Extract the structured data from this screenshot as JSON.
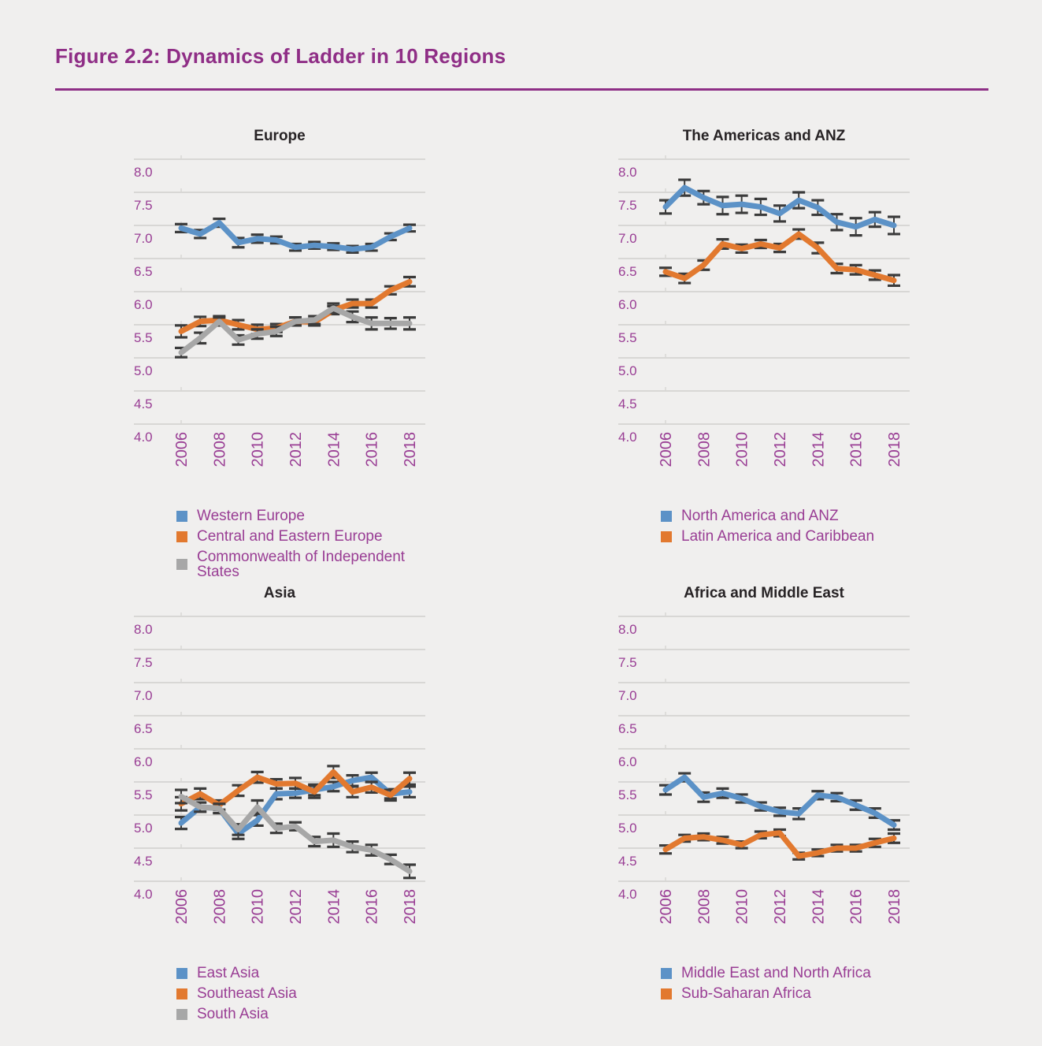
{
  "header": {
    "title": "Figure 2.2: Dynamics of Ladder in 10 Regions"
  },
  "colors": {
    "background": "#f0efee",
    "figure_title": "#8f2e86",
    "rule": "#8e2f86",
    "chart_title": "#272325",
    "axis_text": "#993d94",
    "legend_text": "#993d94",
    "grid": "#d8d7d5",
    "error_bar": "#3b3b3b",
    "blue": "#5c92c7",
    "orange": "#e2792f",
    "gray": "#a7a7a7"
  },
  "chart_data": [
    {
      "type": "line",
      "title": "Europe",
      "ylim": [
        4.0,
        8.0
      ],
      "yticks": [
        "8.0",
        "7.5",
        "7.0",
        "6.5",
        "6.0",
        "5.5",
        "5.0",
        "4.5",
        "4.0"
      ],
      "x": [
        2006,
        2007,
        2008,
        2009,
        2010,
        2011,
        2012,
        2013,
        2014,
        2015,
        2016,
        2017,
        2018
      ],
      "xticks": [
        "2006",
        "2008",
        "2010",
        "2012",
        "2014",
        "2016",
        "2018"
      ],
      "grid": true,
      "legend_position": "below",
      "series": [
        {
          "name": "Western Europe",
          "color_key": "blue",
          "values": [
            6.96,
            6.87,
            7.04,
            6.74,
            6.8,
            6.78,
            6.67,
            6.7,
            6.68,
            6.64,
            6.67,
            6.83,
            6.96
          ],
          "errors": [
            0.06,
            0.06,
            0.06,
            0.07,
            0.06,
            0.05,
            0.05,
            0.05,
            0.05,
            0.05,
            0.05,
            0.05,
            0.05
          ]
        },
        {
          "name": "Central and Eastern Europe",
          "color_key": "orange",
          "values": [
            5.4,
            5.55,
            5.57,
            5.5,
            5.43,
            5.45,
            5.55,
            5.54,
            5.72,
            5.82,
            5.82,
            6.02,
            6.15
          ],
          "errors": [
            0.09,
            0.07,
            0.06,
            0.07,
            0.07,
            0.06,
            0.06,
            0.05,
            0.06,
            0.06,
            0.06,
            0.06,
            0.07
          ]
        },
        {
          "name": "Commonwealth of Independent States",
          "color_key": "gray",
          "values": [
            5.08,
            5.3,
            5.55,
            5.27,
            5.36,
            5.4,
            5.55,
            5.57,
            5.75,
            5.62,
            5.52,
            5.52,
            5.52
          ],
          "errors": [
            0.07,
            0.08,
            0.06,
            0.07,
            0.07,
            0.07,
            0.06,
            0.06,
            0.07,
            0.08,
            0.09,
            0.08,
            0.09
          ]
        }
      ]
    },
    {
      "type": "line",
      "title": "The Americas and ANZ",
      "ylim": [
        4.0,
        8.0
      ],
      "yticks": [
        "8.0",
        "7.5",
        "7.0",
        "6.5",
        "6.0",
        "5.5",
        "5.0",
        "4.5",
        "4.0"
      ],
      "x": [
        2006,
        2007,
        2008,
        2009,
        2010,
        2011,
        2012,
        2013,
        2014,
        2015,
        2016,
        2017,
        2018
      ],
      "xticks": [
        "2006",
        "2008",
        "2010",
        "2012",
        "2014",
        "2016",
        "2018"
      ],
      "grid": true,
      "legend_position": "below",
      "series": [
        {
          "name": "North America and ANZ",
          "color_key": "blue",
          "values": [
            7.28,
            7.57,
            7.42,
            7.3,
            7.32,
            7.28,
            7.18,
            7.38,
            7.27,
            7.05,
            6.98,
            7.09,
            7.0
          ],
          "errors": [
            0.1,
            0.12,
            0.1,
            0.13,
            0.13,
            0.12,
            0.12,
            0.12,
            0.11,
            0.12,
            0.13,
            0.11,
            0.13
          ]
        },
        {
          "name": "Latin America and Caribbean",
          "color_key": "orange",
          "values": [
            6.3,
            6.2,
            6.4,
            6.72,
            6.65,
            6.72,
            6.66,
            6.87,
            6.66,
            6.35,
            6.33,
            6.25,
            6.17
          ],
          "errors": [
            0.06,
            0.07,
            0.07,
            0.07,
            0.06,
            0.06,
            0.06,
            0.07,
            0.08,
            0.07,
            0.07,
            0.07,
            0.08
          ]
        }
      ]
    },
    {
      "type": "line",
      "title": "Asia",
      "ylim": [
        4.0,
        8.0
      ],
      "yticks": [
        "8.0",
        "7.5",
        "7.0",
        "6.5",
        "6.0",
        "5.5",
        "5.0",
        "4.5",
        "4.0"
      ],
      "x": [
        2006,
        2007,
        2008,
        2009,
        2010,
        2011,
        2012,
        2013,
        2014,
        2015,
        2016,
        2017,
        2018
      ],
      "xticks": [
        "2006",
        "2008",
        "2010",
        "2012",
        "2014",
        "2016",
        "2018"
      ],
      "grid": true,
      "legend_position": "below",
      "series": [
        {
          "name": "East Asia",
          "color_key": "blue",
          "values": [
            4.88,
            5.12,
            5.1,
            4.72,
            4.92,
            5.32,
            5.33,
            5.38,
            5.43,
            5.52,
            5.57,
            5.32,
            5.35
          ],
          "errors": [
            0.09,
            0.07,
            0.07,
            0.08,
            0.08,
            0.08,
            0.07,
            0.08,
            0.07,
            0.08,
            0.07,
            0.07,
            0.08
          ]
        },
        {
          "name": "Southeast Asia",
          "color_key": "orange",
          "values": [
            5.17,
            5.32,
            5.15,
            5.37,
            5.57,
            5.47,
            5.48,
            5.35,
            5.65,
            5.35,
            5.42,
            5.3,
            5.55
          ],
          "errors": [
            0.1,
            0.08,
            0.07,
            0.08,
            0.08,
            0.07,
            0.08,
            0.09,
            0.09,
            0.08,
            0.08,
            0.08,
            0.09
          ]
        },
        {
          "name": "South Asia",
          "color_key": "gray",
          "values": [
            5.28,
            5.12,
            5.1,
            4.78,
            5.12,
            4.8,
            4.83,
            4.6,
            4.62,
            4.52,
            4.47,
            4.33,
            4.15
          ],
          "errors": [
            0.1,
            0.07,
            0.07,
            0.08,
            0.1,
            0.07,
            0.06,
            0.07,
            0.1,
            0.08,
            0.08,
            0.07,
            0.1
          ]
        }
      ]
    },
    {
      "type": "line",
      "title": "Africa and Middle East",
      "ylim": [
        4.0,
        8.0
      ],
      "yticks": [
        "8.0",
        "7.5",
        "7.0",
        "6.5",
        "6.0",
        "5.5",
        "5.0",
        "4.5",
        "4.0"
      ],
      "x": [
        2006,
        2007,
        2008,
        2009,
        2010,
        2011,
        2012,
        2013,
        2014,
        2015,
        2016,
        2017,
        2018
      ],
      "xticks": [
        "2006",
        "2008",
        "2010",
        "2012",
        "2014",
        "2016",
        "2018"
      ],
      "grid": true,
      "legend_position": "below",
      "series": [
        {
          "name": "Middle East and North Africa",
          "color_key": "blue",
          "values": [
            5.38,
            5.57,
            5.27,
            5.33,
            5.25,
            5.13,
            5.05,
            5.02,
            5.3,
            5.27,
            5.15,
            5.03,
            4.85
          ],
          "errors": [
            0.07,
            0.06,
            0.07,
            0.07,
            0.06,
            0.06,
            0.06,
            0.08,
            0.06,
            0.06,
            0.07,
            0.07,
            0.07
          ]
        },
        {
          "name": "Sub-Saharan Africa",
          "color_key": "orange",
          "values": [
            4.48,
            4.65,
            4.67,
            4.62,
            4.55,
            4.7,
            4.73,
            4.38,
            4.43,
            4.5,
            4.5,
            4.58,
            4.65
          ],
          "errors": [
            0.06,
            0.05,
            0.05,
            0.05,
            0.05,
            0.05,
            0.05,
            0.05,
            0.05,
            0.05,
            0.05,
            0.06,
            0.07
          ]
        }
      ]
    }
  ]
}
